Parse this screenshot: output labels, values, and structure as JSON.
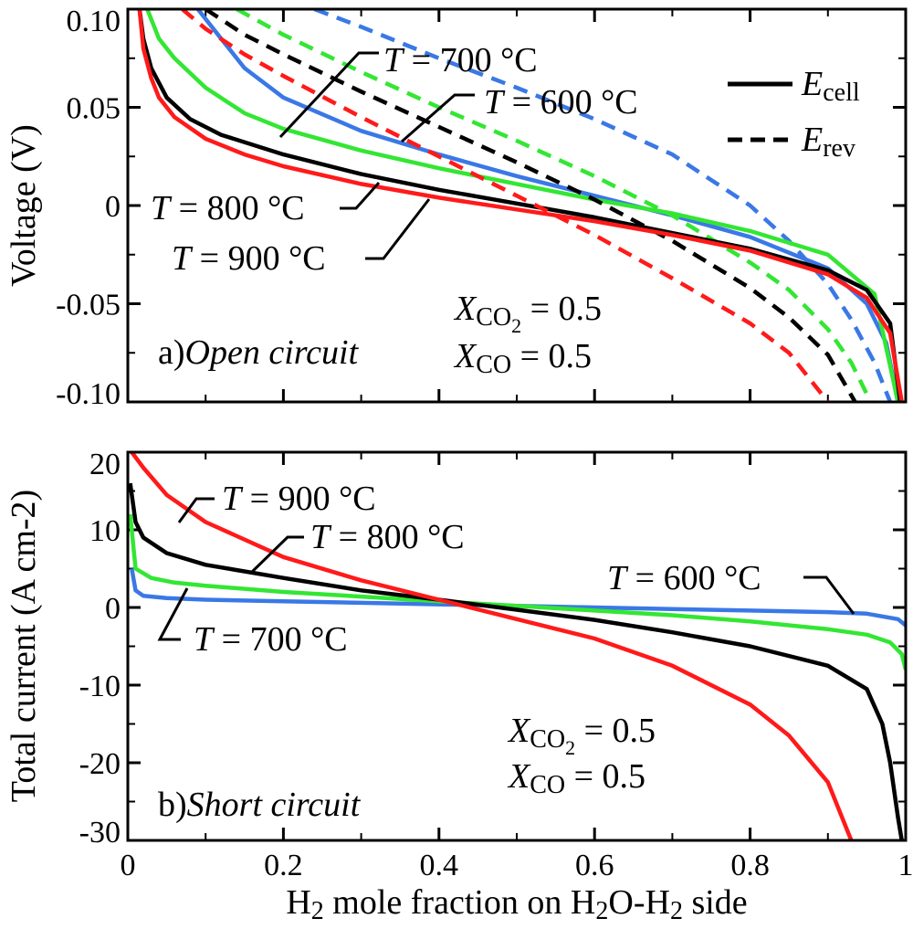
{
  "chart_data": [
    {
      "type": "line",
      "panel_label": "a)",
      "panel_title": "Open circuit",
      "xlim": [
        0,
        1
      ],
      "ylim": [
        -0.1,
        0.1
      ],
      "xticks": [
        "0",
        "0.2",
        "0.4",
        "0.6",
        "0.8",
        "1"
      ],
      "yticks": [
        "0.10",
        "0.05",
        "0",
        "-0.05",
        "-0.10"
      ],
      "xlabel": "",
      "ylabel": "Voltage (V)",
      "composition": [
        "X_CO2 = 0.5",
        "X_CO = 0.5"
      ],
      "legend": {
        "position": "top-right",
        "entries": [
          {
            "label": "E_cell",
            "style": "solid"
          },
          {
            "label": "E_rev",
            "style": "dashed"
          }
        ]
      },
      "temperature_labels": [
        "T = 700 °C",
        "T = 600 °C",
        "T = 800 °C",
        "T = 900 °C"
      ],
      "series": [
        {
          "temperature": "600 °C",
          "kind": "E_cell",
          "style": "solid",
          "color": "#3a78e6",
          "x": [
            0.09,
            0.12,
            0.15,
            0.2,
            0.3,
            0.4,
            0.5,
            0.6,
            0.7,
            0.8,
            0.9,
            0.95,
            0.975,
            0.99
          ],
          "y": [
            0.1,
            0.085,
            0.07,
            0.055,
            0.038,
            0.026,
            0.015,
            0.005,
            -0.005,
            -0.016,
            -0.032,
            -0.05,
            -0.07,
            -0.1
          ]
        },
        {
          "temperature": "600 °C",
          "kind": "E_rev",
          "style": "dashed",
          "color": "#3a78e6",
          "x": [
            0.24,
            0.3,
            0.4,
            0.5,
            0.6,
            0.7,
            0.8,
            0.85,
            0.9,
            0.93,
            0.96,
            0.98
          ],
          "y": [
            0.1,
            0.091,
            0.075,
            0.06,
            0.044,
            0.026,
            0.0,
            -0.018,
            -0.04,
            -0.058,
            -0.08,
            -0.1
          ]
        },
        {
          "temperature": "700 °C",
          "kind": "E_cell",
          "style": "solid",
          "color": "#33e633",
          "x": [
            0.025,
            0.04,
            0.06,
            0.1,
            0.15,
            0.2,
            0.3,
            0.4,
            0.5,
            0.6,
            0.7,
            0.8,
            0.9,
            0.96,
            0.99
          ],
          "y": [
            0.1,
            0.085,
            0.075,
            0.06,
            0.047,
            0.039,
            0.028,
            0.019,
            0.011,
            0.003,
            -0.004,
            -0.013,
            -0.025,
            -0.045,
            -0.1
          ]
        },
        {
          "temperature": "700 °C",
          "kind": "E_rev",
          "style": "dashed",
          "color": "#33e633",
          "x": [
            0.14,
            0.2,
            0.3,
            0.4,
            0.5,
            0.6,
            0.7,
            0.8,
            0.85,
            0.9,
            0.93,
            0.955
          ],
          "y": [
            0.1,
            0.087,
            0.068,
            0.05,
            0.033,
            0.015,
            -0.005,
            -0.029,
            -0.043,
            -0.063,
            -0.08,
            -0.1
          ]
        },
        {
          "temperature": "800 °C",
          "kind": "E_cell",
          "style": "solid",
          "color": "#000000",
          "x": [
            0.015,
            0.02,
            0.03,
            0.05,
            0.08,
            0.12,
            0.2,
            0.3,
            0.4,
            0.5,
            0.6,
            0.7,
            0.8,
            0.9,
            0.95,
            0.98,
            0.993
          ],
          "y": [
            0.1,
            0.085,
            0.07,
            0.055,
            0.044,
            0.036,
            0.026,
            0.016,
            0.008,
            0.001,
            -0.006,
            -0.014,
            -0.022,
            -0.033,
            -0.043,
            -0.06,
            -0.1
          ]
        },
        {
          "temperature": "800 °C",
          "kind": "E_rev",
          "style": "dashed",
          "color": "#000000",
          "x": [
            0.1,
            0.15,
            0.2,
            0.3,
            0.4,
            0.5,
            0.6,
            0.7,
            0.8,
            0.85,
            0.9,
            0.935
          ],
          "y": [
            0.1,
            0.087,
            0.077,
            0.058,
            0.04,
            0.022,
            0.003,
            -0.018,
            -0.042,
            -0.057,
            -0.076,
            -0.1
          ]
        },
        {
          "temperature": "900 °C",
          "kind": "E_cell",
          "style": "solid",
          "color": "#ff1a1a",
          "x": [
            0.015,
            0.02,
            0.03,
            0.04,
            0.06,
            0.1,
            0.15,
            0.2,
            0.3,
            0.4,
            0.5,
            0.6,
            0.7,
            0.8,
            0.9,
            0.95,
            0.98,
            0.995
          ],
          "y": [
            0.1,
            0.08,
            0.065,
            0.055,
            0.045,
            0.034,
            0.026,
            0.02,
            0.011,
            0.004,
            -0.002,
            -0.008,
            -0.015,
            -0.023,
            -0.035,
            -0.047,
            -0.065,
            -0.1
          ]
        },
        {
          "temperature": "900 °C",
          "kind": "E_rev",
          "style": "dashed",
          "color": "#ff1a1a",
          "x": [
            0.07,
            0.1,
            0.15,
            0.2,
            0.3,
            0.4,
            0.5,
            0.6,
            0.7,
            0.8,
            0.85,
            0.9
          ],
          "y": [
            0.1,
            0.09,
            0.077,
            0.066,
            0.045,
            0.025,
            0.005,
            -0.015,
            -0.037,
            -0.06,
            -0.075,
            -0.1
          ]
        }
      ]
    },
    {
      "type": "line",
      "panel_label": "b)",
      "panel_title": "Short circuit",
      "xlim": [
        0,
        1
      ],
      "ylim": [
        -30,
        20
      ],
      "xticks": [
        "0",
        "0.2",
        "0.4",
        "0.6",
        "0.8",
        "1"
      ],
      "yticks": [
        "20",
        "10",
        "0",
        "-10",
        "-20",
        "-30"
      ],
      "xlabel": "H2 mole fraction on H2O-H2 side",
      "ylabel": "Total current (A cm-2)",
      "composition": [
        "X_CO2 = 0.5",
        "X_CO = 0.5"
      ],
      "temperature_labels": [
        "T = 900 °C",
        "T = 800 °C",
        "T = 600 °C",
        "T = 700 °C"
      ],
      "series": [
        {
          "temperature": "600 °C",
          "style": "solid",
          "color": "#3a78e6",
          "x": [
            0.005,
            0.01,
            0.02,
            0.05,
            0.1,
            0.2,
            0.3,
            0.4,
            0.5,
            0.6,
            0.7,
            0.8,
            0.9,
            0.95,
            0.99,
            1.0
          ],
          "y": [
            5,
            2.2,
            1.5,
            1.2,
            1.0,
            0.8,
            0.6,
            0.4,
            0.2,
            0.0,
            -0.2,
            -0.4,
            -0.6,
            -0.8,
            -1.5,
            -2.3
          ]
        },
        {
          "temperature": "700 °C",
          "style": "solid",
          "color": "#33e633",
          "x": [
            0.003,
            0.01,
            0.03,
            0.06,
            0.1,
            0.2,
            0.3,
            0.4,
            0.5,
            0.6,
            0.7,
            0.8,
            0.9,
            0.95,
            0.98,
            0.995,
            1.0
          ],
          "y": [
            12,
            5,
            3.8,
            3.2,
            2.8,
            2.0,
            1.4,
            0.8,
            0.2,
            -0.4,
            -1.0,
            -1.8,
            -2.8,
            -3.5,
            -4.5,
            -6,
            -8
          ]
        },
        {
          "temperature": "800 °C",
          "style": "solid",
          "color": "#000000",
          "x": [
            0.003,
            0.01,
            0.02,
            0.05,
            0.1,
            0.2,
            0.3,
            0.4,
            0.5,
            0.6,
            0.7,
            0.8,
            0.9,
            0.95,
            0.97,
            0.98,
            0.99,
            0.995
          ],
          "y": [
            16,
            11,
            9,
            7,
            5.5,
            3.8,
            2.2,
            1.0,
            -0.3,
            -1.6,
            -3.2,
            -5.0,
            -7.5,
            -10.5,
            -15,
            -20,
            -27,
            -30
          ]
        },
        {
          "temperature": "900 °C",
          "style": "solid",
          "color": "#ff1a1a",
          "x": [
            0.005,
            0.02,
            0.05,
            0.1,
            0.2,
            0.3,
            0.4,
            0.5,
            0.6,
            0.7,
            0.8,
            0.85,
            0.9,
            0.93
          ],
          "y": [
            20,
            18,
            14.5,
            11,
            6.5,
            3.5,
            1.0,
            -1.5,
            -4,
            -7.5,
            -12.5,
            -16.5,
            -22.5,
            -30
          ]
        }
      ]
    }
  ]
}
